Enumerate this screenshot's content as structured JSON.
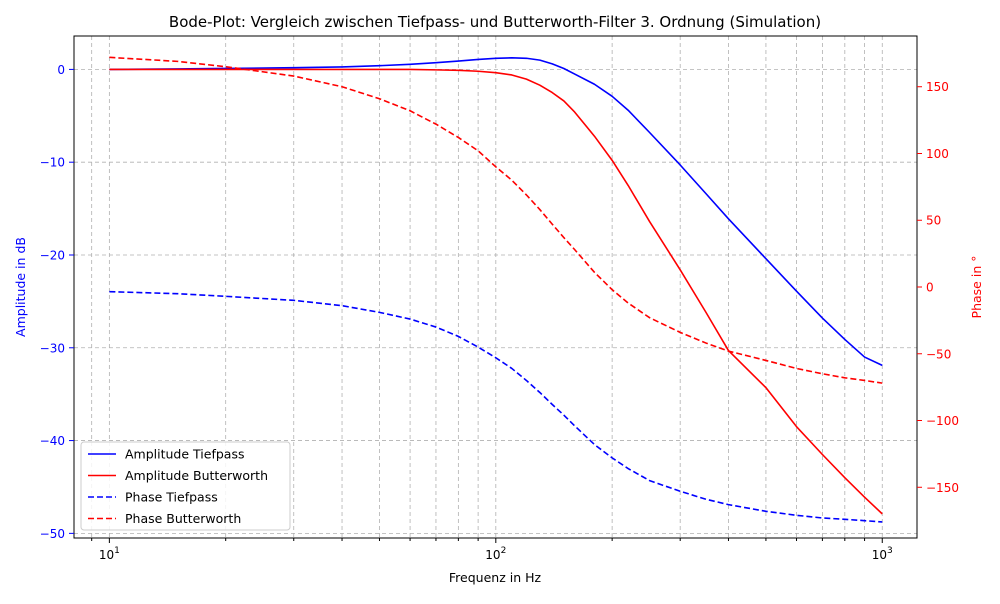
{
  "chart_data": {
    "type": "line",
    "title": "Bode-Plot: Vergleich zwischen Tiefpass- und Butterworth-Filter 3. Ordnung (Simulation)",
    "xlabel": "Frequenz in Hz",
    "ylabel_left": "Amplitude in dB",
    "ylabel_right": "Phase in °",
    "x_scale": "log",
    "xlim": [
      8.1,
      1230
    ],
    "ylim_left": [
      -50.5,
      3.6
    ],
    "ylim_right": [
      -188,
      188
    ],
    "grid": true,
    "legend_position": "lower-left",
    "x_ticks": [
      10,
      100,
      1000
    ],
    "x_tick_labels": [
      "10",
      "10",
      "10"
    ],
    "x_tick_label_exponents": [
      "1",
      "2",
      "3"
    ],
    "y_left_ticks": [
      0,
      -10,
      -20,
      -30,
      -40,
      -50
    ],
    "y_left_tick_labels": [
      "0",
      "−10",
      "−20",
      "−30",
      "−40",
      "−50"
    ],
    "y_right_ticks": [
      150,
      100,
      50,
      0,
      -50,
      -100,
      -150
    ],
    "y_right_tick_labels": [
      "150",
      "100",
      "50",
      "0",
      "−50",
      "−100",
      "−150"
    ],
    "x": [
      10,
      15,
      20,
      30,
      40,
      50,
      60,
      70,
      80,
      90,
      100,
      110,
      120,
      130,
      140,
      150,
      160,
      180,
      200,
      220,
      250,
      300,
      350,
      400,
      500,
      600,
      700,
      800,
      900,
      1000
    ],
    "series": [
      {
        "name": "Amplitude Tiefpass",
        "axis": "left",
        "color": "#0000ff",
        "dash": "solid",
        "values": [
          0.0,
          0.05,
          0.1,
          0.18,
          0.27,
          0.4,
          0.55,
          0.72,
          0.9,
          1.07,
          1.2,
          1.25,
          1.2,
          1.0,
          0.6,
          0.1,
          -0.5,
          -1.6,
          -2.9,
          -4.4,
          -6.8,
          -10.3,
          -13.4,
          -16.1,
          -20.4,
          -23.9,
          -26.8,
          -29.1,
          -31.0,
          -31.9
        ]
      },
      {
        "name": "Amplitude Butterworth",
        "axis": "left",
        "color": "#ff0000",
        "dash": "solid",
        "values": [
          0.0,
          0.0,
          0.0,
          0.0,
          0.0,
          0.0,
          0.0,
          -0.05,
          -0.1,
          -0.2,
          -0.35,
          -0.6,
          -1.05,
          -1.7,
          -2.5,
          -3.4,
          -4.6,
          -7.2,
          -9.8,
          -12.5,
          -16.4,
          -21.6,
          -26.2,
          -30.3,
          -34.3,
          -38.5,
          -41.5,
          -44.0,
          -46.1,
          -47.9
        ]
      },
      {
        "name": "Phase Tiefpass",
        "axis": "right",
        "color": "#0000ff",
        "dash": "dashed",
        "values": [
          -3.5,
          -5,
          -7,
          -10,
          -14,
          -19,
          -24,
          -30,
          -37,
          -45,
          -53,
          -61,
          -70,
          -79,
          -88,
          -96,
          -104,
          -118,
          -128,
          -136,
          -145,
          -153,
          -159,
          -163,
          -168,
          -171,
          -173,
          -174,
          -175,
          -176
        ]
      },
      {
        "name": "Phase Butterworth",
        "axis": "right",
        "color": "#ff0000",
        "dash": "dashed",
        "values": [
          172,
          169,
          165,
          158,
          150,
          141,
          132,
          122,
          112,
          102,
          90,
          80,
          69,
          58,
          47,
          37,
          28,
          11,
          -2,
          -12,
          -23,
          -34,
          -42,
          -48,
          -55,
          -61,
          -65,
          -68,
          -70,
          -72
        ]
      }
    ]
  }
}
